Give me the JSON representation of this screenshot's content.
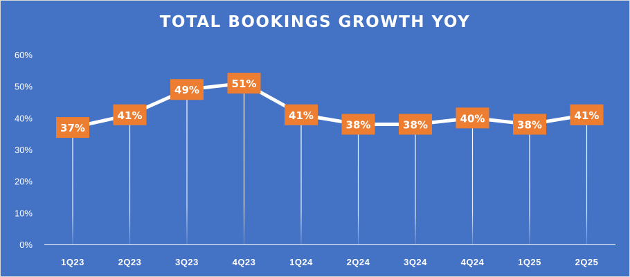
{
  "chart_data": {
    "type": "line",
    "title": "TOTAL BOOKINGS GROWTH YOY",
    "categories": [
      "1Q23",
      "2Q23",
      "3Q23",
      "4Q23",
      "1Q24",
      "2Q24",
      "3Q24",
      "4Q24",
      "1Q25",
      "2Q25"
    ],
    "values": [
      37,
      41,
      49,
      51,
      41,
      38,
      38,
      40,
      38,
      41
    ],
    "data_labels": [
      "37%",
      "41%",
      "49%",
      "51%",
      "41%",
      "38%",
      "38%",
      "40%",
      "38%",
      "41%"
    ],
    "yticks": [
      0,
      10,
      20,
      30,
      40,
      50,
      60
    ],
    "ytick_labels": [
      "0%",
      "10%",
      "20%",
      "30%",
      "40%",
      "50%",
      "60%"
    ],
    "ylim": [
      0,
      60
    ],
    "grid": false,
    "drop_lines": true,
    "legend": "none",
    "colors": {
      "background": "#4472c4",
      "line": "#ffffff",
      "label_box": "#ed7d31",
      "text": "#ffffff"
    }
  }
}
